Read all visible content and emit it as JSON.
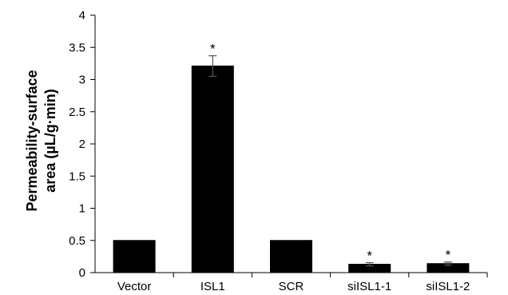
{
  "chart_data": {
    "type": "bar",
    "title": "",
    "xlabel": "",
    "ylabel_lines": [
      "Permeability-surface",
      "area (µL/g·min)"
    ],
    "categories": [
      "Vector",
      "ISL1",
      "SCR",
      "siISL1-1",
      "siISL1-2"
    ],
    "values": [
      0.5,
      3.21,
      0.5,
      0.13,
      0.14
    ],
    "errors": [
      0.0,
      0.16,
      0.0,
      0.025,
      0.025
    ],
    "significance": [
      "",
      "*",
      "",
      "*",
      "*"
    ],
    "ylim": [
      0,
      4
    ],
    "yticks": [
      "0",
      "0.5",
      "1",
      "1.5",
      "2",
      "2.5",
      "3",
      "3.5",
      "4"
    ],
    "ytick_values": [
      0,
      0.5,
      1,
      1.5,
      2,
      2.5,
      3,
      3.5,
      4
    ],
    "grid": false,
    "bar_color": "#000000"
  }
}
